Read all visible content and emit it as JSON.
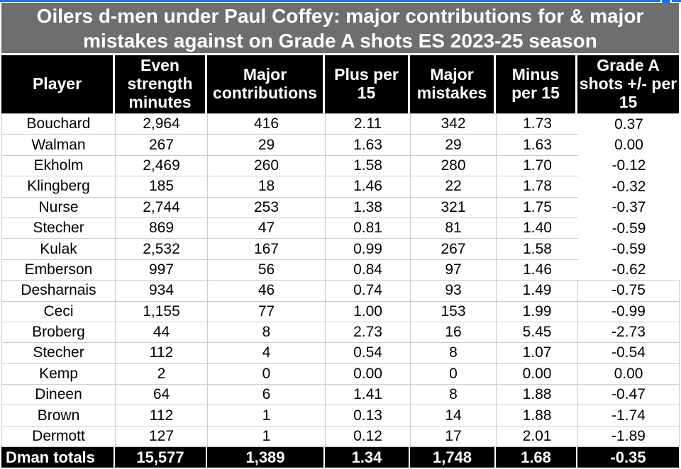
{
  "colors": {
    "title_bg": "#6e6e6e",
    "header_bg": "#000000",
    "header_text": "#ffffff",
    "gridline": "#cccccc",
    "selection_blue": "#1a73e8"
  },
  "selection": {
    "handle_icon": "selection-resize-handle"
  },
  "chart_data": {
    "type": "table",
    "title": "Oilers d-men under Paul Coffey: major contributions for & major mistakes against on Grade A shots ES 2023-25 season",
    "columns": [
      "Player",
      "Even strength minutes",
      "Major contributions",
      "Plus per 15",
      "Major mistakes",
      "Minus per 15",
      "Grade A shots +/- per 15"
    ],
    "rows": [
      [
        "Bouchard",
        "2,964",
        "416",
        "2.11",
        "342",
        "1.73",
        "0.37"
      ],
      [
        "Walman",
        "267",
        "29",
        "1.63",
        "29",
        "1.63",
        "0.00"
      ],
      [
        "Ekholm",
        "2,469",
        "260",
        "1.58",
        "280",
        "1.70",
        "-0.12"
      ],
      [
        "Klingberg",
        "185",
        "18",
        "1.46",
        "22",
        "1.78",
        "-0.32"
      ],
      [
        "Nurse",
        "2,744",
        "253",
        "1.38",
        "321",
        "1.75",
        "-0.37"
      ],
      [
        "Stecher",
        "869",
        "47",
        "0.81",
        "81",
        "1.40",
        "-0.59"
      ],
      [
        "Kulak",
        "2,532",
        "167",
        "0.99",
        "267",
        "1.58",
        "-0.59"
      ],
      [
        "Emberson",
        "997",
        "56",
        "0.84",
        "97",
        "1.46",
        "-0.62"
      ],
      [
        "Desharnais",
        "934",
        "46",
        "0.74",
        "93",
        "1.49",
        "-0.75"
      ],
      [
        "Ceci",
        "1,155",
        "77",
        "1.00",
        "153",
        "1.99",
        "-0.99"
      ],
      [
        "Broberg",
        "44",
        "8",
        "2.73",
        "16",
        "5.45",
        "-2.73"
      ],
      [
        "Stecher",
        "112",
        "4",
        "0.54",
        "8",
        "1.07",
        "-0.54"
      ],
      [
        "Kemp",
        "2",
        "0",
        "0.00",
        "0",
        "0.00",
        "0.00"
      ],
      [
        "Dineen",
        "64",
        "6",
        "1.41",
        "8",
        "1.88",
        "-0.47"
      ],
      [
        "Brown",
        "112",
        "1",
        "0.13",
        "14",
        "1.88",
        "-1.74"
      ],
      [
        "Dermott",
        "127",
        "1",
        "0.12",
        "17",
        "2.01",
        "-1.89"
      ]
    ],
    "totals_row": [
      "Dman totals",
      "15,577",
      "1,389",
      "1.34",
      "1,748",
      "1.68",
      "-0.35"
    ]
  }
}
